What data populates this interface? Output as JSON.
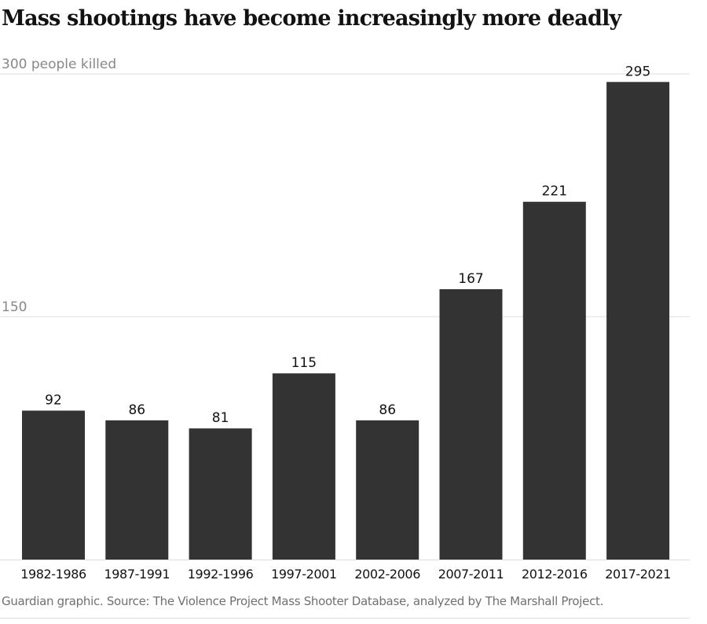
{
  "chart_data": {
    "type": "bar",
    "title": "Mass shootings have become increasingly more deadly",
    "categories": [
      "1982-1986",
      "1987-1991",
      "1992-1996",
      "1997-2001",
      "2002-2006",
      "2007-2011",
      "2012-2016",
      "2017-2021"
    ],
    "values": [
      92,
      86,
      81,
      115,
      86,
      167,
      221,
      295
    ],
    "ylabel": "people killed",
    "yticks": [
      {
        "value": 300,
        "label": "300 people killed"
      },
      {
        "value": 150,
        "label": "150"
      }
    ],
    "ylim": [
      0,
      300
    ],
    "grid": true,
    "bar_color": "#333333",
    "source": "Guardian graphic. Source: The Violence Project Mass Shooter Database, analyzed by The Marshall Project."
  }
}
